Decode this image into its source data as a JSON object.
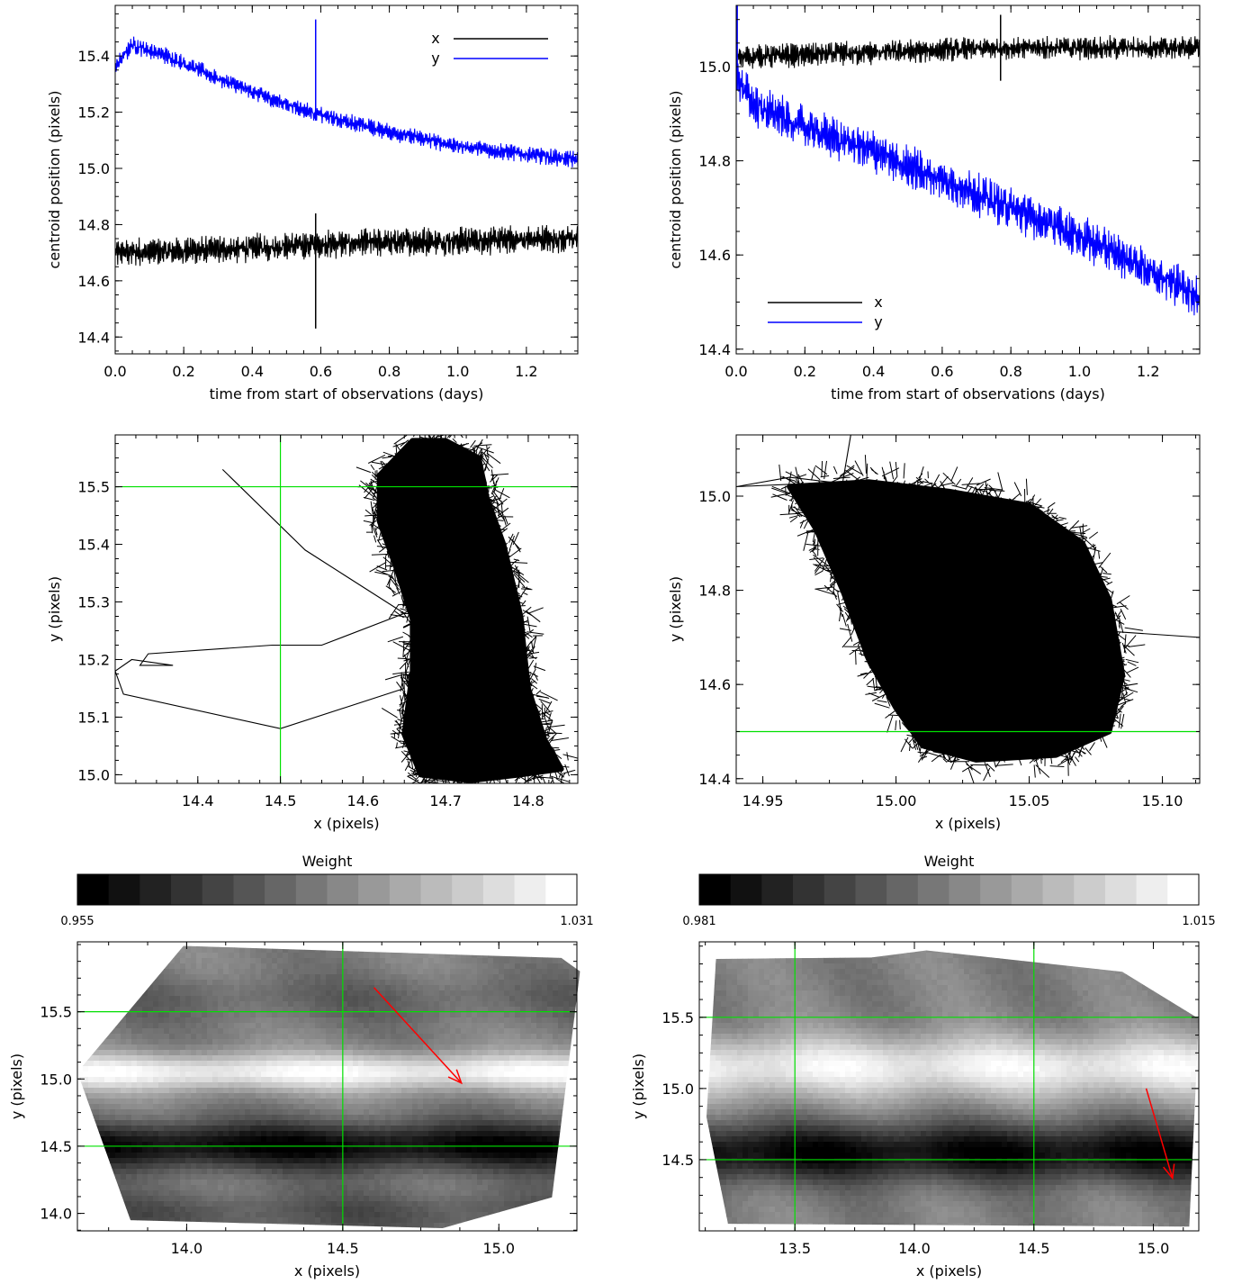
{
  "chart_data": [
    {
      "id": "A",
      "type": "line",
      "xlabel": "time from start of observations (days)",
      "ylabel": "centroid position (pixels)",
      "xlim": [
        0.0,
        1.35
      ],
      "ylim": [
        14.34,
        15.58
      ],
      "xticks": [
        0.0,
        0.2,
        0.4,
        0.6,
        0.8,
        1.0,
        1.2
      ],
      "xticklabels": [
        "0.0",
        "0.2",
        "0.4",
        "0.6",
        "0.8",
        "1.0",
        "1.2"
      ],
      "yticks": [
        14.4,
        14.6,
        14.8,
        15.0,
        15.2,
        15.4
      ],
      "yticklabels": [
        "14.4",
        "14.6",
        "14.8",
        "15.0",
        "15.2",
        "15.4"
      ],
      "legend_position": "top-right",
      "series": [
        {
          "name": "x",
          "color": "#000000",
          "trend": [
            [
              0.0,
              14.7
            ],
            [
              0.3,
              14.71
            ],
            [
              0.6,
              14.73
            ],
            [
              0.9,
              14.74
            ],
            [
              1.35,
              14.75
            ]
          ],
          "noise_halfwidth": 0.05,
          "spike": {
            "x": 0.585,
            "low": 14.43,
            "high": 14.84
          }
        },
        {
          "name": "y",
          "color": "#0000ff",
          "trend": [
            [
              0.0,
              15.36
            ],
            [
              0.05,
              15.44
            ],
            [
              0.15,
              15.4
            ],
            [
              0.3,
              15.32
            ],
            [
              0.45,
              15.25
            ],
            [
              0.6,
              15.19
            ],
            [
              0.8,
              15.13
            ],
            [
              1.0,
              15.08
            ],
            [
              1.2,
              15.05
            ],
            [
              1.35,
              15.03
            ]
          ],
          "noise_halfwidth": 0.03,
          "spike": {
            "x": 0.585,
            "low": 15.17,
            "high": 15.53
          }
        }
      ]
    },
    {
      "id": "B",
      "type": "line",
      "xlabel": "time from start of observations (days)",
      "ylabel": "centroid position (pixels)",
      "xlim": [
        0.0,
        1.35
      ],
      "ylim": [
        14.39,
        15.13
      ],
      "xticks": [
        0.0,
        0.2,
        0.4,
        0.6,
        0.8,
        1.0,
        1.2
      ],
      "xticklabels": [
        "0.0",
        "0.2",
        "0.4",
        "0.6",
        "0.8",
        "1.0",
        "1.2"
      ],
      "yticks": [
        14.4,
        14.6,
        14.8,
        15.0
      ],
      "yticklabels": [
        "14.4",
        "14.6",
        "14.8",
        "15.0"
      ],
      "legend_position": "bottom-left",
      "series": [
        {
          "name": "x",
          "color": "#000000",
          "trend": [
            [
              0.0,
              15.02
            ],
            [
              0.4,
              15.03
            ],
            [
              0.8,
              15.04
            ],
            [
              1.35,
              15.04
            ]
          ],
          "noise_halfwidth": 0.025,
          "spike": {
            "x": 0.77,
            "low": 14.97,
            "high": 15.11
          }
        },
        {
          "name": "y",
          "color": "#0000ff",
          "trend": [
            [
              0.0,
              14.98
            ],
            [
              0.05,
              14.92
            ],
            [
              0.2,
              14.87
            ],
            [
              0.4,
              14.82
            ],
            [
              0.6,
              14.76
            ],
            [
              0.8,
              14.7
            ],
            [
              1.0,
              14.64
            ],
            [
              1.2,
              14.57
            ],
            [
              1.35,
              14.51
            ]
          ],
          "noise_halfwidth": 0.045,
          "spike": {
            "x": 0.003,
            "low": 14.95,
            "high": 15.13
          }
        }
      ]
    },
    {
      "id": "C",
      "type": "line",
      "xlabel": "x (pixels)",
      "ylabel": "y (pixels)",
      "xlim": [
        14.3,
        14.86
      ],
      "ylim": [
        14.985,
        15.59
      ],
      "xticks": [
        14.4,
        14.5,
        14.6,
        14.7,
        14.8
      ],
      "xticklabels": [
        "14.4",
        "14.5",
        "14.6",
        "14.7",
        "14.8"
      ],
      "yticks": [
        15.0,
        15.1,
        15.2,
        15.3,
        15.4,
        15.5
      ],
      "yticklabels": [
        "15.0",
        "15.1",
        "15.2",
        "15.3",
        "15.4",
        "15.5"
      ],
      "reference_lines": {
        "x": 14.5,
        "y": 15.5,
        "color": "#00e000"
      },
      "trajectory_path": [
        [
          14.43,
          15.53
        ],
        [
          14.53,
          15.39
        ],
        [
          14.65,
          15.28
        ],
        [
          14.55,
          15.225
        ],
        [
          14.49,
          15.225
        ],
        [
          14.34,
          15.21
        ],
        [
          14.33,
          15.19
        ],
        [
          14.37,
          15.19
        ],
        [
          14.32,
          15.2
        ],
        [
          14.3,
          15.18
        ],
        [
          14.31,
          15.14
        ],
        [
          14.5,
          15.08
        ],
        [
          14.65,
          15.15
        ]
      ],
      "cloud_outline": [
        [
          14.62,
          15.52
        ],
        [
          14.66,
          15.58
        ],
        [
          14.7,
          15.58
        ],
        [
          14.74,
          15.55
        ],
        [
          14.75,
          15.48
        ],
        [
          14.77,
          15.4
        ],
        [
          14.79,
          15.28
        ],
        [
          14.8,
          15.15
        ],
        [
          14.82,
          15.06
        ],
        [
          14.84,
          15.01
        ],
        [
          14.79,
          15.0
        ],
        [
          14.73,
          14.99
        ],
        [
          14.67,
          15.0
        ],
        [
          14.65,
          15.07
        ],
        [
          14.66,
          15.18
        ],
        [
          14.66,
          15.27
        ],
        [
          14.64,
          15.36
        ],
        [
          14.62,
          15.44
        ]
      ]
    },
    {
      "id": "D",
      "type": "line",
      "xlabel": "x (pixels)",
      "ylabel": "y (pixels)",
      "xlim": [
        14.94,
        15.114
      ],
      "ylim": [
        14.39,
        15.13
      ],
      "xticks": [
        14.95,
        15.0,
        15.05,
        15.1
      ],
      "xticklabels": [
        "14.95",
        "15.00",
        "15.05",
        "15.10"
      ],
      "yticks": [
        14.4,
        14.6,
        14.8,
        15.0
      ],
      "yticklabels": [
        "14.4",
        "14.6",
        "14.8",
        "15.0"
      ],
      "reference_lines": {
        "y": 14.5,
        "color": "#00e000"
      },
      "trajectory_path": [
        [
          14.983,
          15.13
        ],
        [
          14.98,
          15.03
        ],
        [
          14.94,
          15.02
        ],
        [
          14.96,
          15.04
        ],
        [
          14.99,
          15.02
        ]
      ],
      "cloud_outline": [
        [
          14.96,
          15.02
        ],
        [
          14.99,
          15.03
        ],
        [
          15.02,
          15.01
        ],
        [
          15.05,
          14.98
        ],
        [
          15.07,
          14.9
        ],
        [
          15.08,
          14.78
        ],
        [
          15.085,
          14.62
        ],
        [
          15.08,
          14.5
        ],
        [
          15.06,
          14.45
        ],
        [
          15.03,
          14.44
        ],
        [
          15.01,
          14.47
        ],
        [
          15.0,
          14.55
        ],
        [
          14.99,
          14.65
        ],
        [
          14.98,
          14.8
        ],
        [
          14.97,
          14.93
        ]
      ],
      "outliers": [
        [
          15.114,
          14.7
        ],
        [
          14.985,
          14.75
        ]
      ]
    },
    {
      "id": "E",
      "type": "heatmap",
      "colorbar_title": "Weight",
      "colorbar_min_label": "0.955",
      "colorbar_max_label": "1.031",
      "colorbar_levels": 16,
      "xlabel": "x (pixels)",
      "ylabel": "y (pixels)",
      "xlim": [
        13.65,
        15.25
      ],
      "ylim": [
        13.87,
        16.02
      ],
      "xticks": [
        14.0,
        14.5,
        15.0
      ],
      "xticklabels": [
        "14.0",
        "14.5",
        "15.0"
      ],
      "yticks": [
        14.0,
        14.5,
        15.0,
        15.5
      ],
      "yticklabels": [
        "14.0",
        "14.5",
        "15.0",
        "15.5"
      ],
      "reference_lines": {
        "x": [
          14.5
        ],
        "y": [
          14.5,
          15.5
        ],
        "color": "#00e000"
      },
      "hull": [
        [
          13.65,
          15.05
        ],
        [
          13.99,
          15.99
        ],
        [
          15.2,
          15.9
        ],
        [
          15.26,
          15.8
        ],
        [
          15.17,
          14.12
        ],
        [
          14.82,
          13.89
        ],
        [
          13.82,
          13.95
        ]
      ],
      "bands": [
        {
          "y": 15.05,
          "value": 1.028,
          "width": 0.14
        },
        {
          "y": 14.5,
          "value": 0.957,
          "width": 0.18
        },
        {
          "y": 15.6,
          "value": 0.985,
          "width": 0.18
        },
        {
          "y": 14.0,
          "value": 0.98,
          "width": 0.18
        }
      ],
      "arrow": {
        "from": [
          14.6,
          15.68
        ],
        "to": [
          14.88,
          14.97
        ],
        "color": "#ff0000"
      }
    },
    {
      "id": "F",
      "type": "heatmap",
      "colorbar_title": "Weight",
      "colorbar_min_label": "0.981",
      "colorbar_max_label": "1.015",
      "colorbar_levels": 16,
      "xlabel": "x (pixels)",
      "ylabel": "y (pixels)",
      "xlim": [
        13.1,
        15.19
      ],
      "ylim": [
        14.0,
        16.03
      ],
      "xticks": [
        13.5,
        14.0,
        14.5,
        15.0
      ],
      "xticklabels": [
        "13.5",
        "14.0",
        "14.5",
        "15.0"
      ],
      "yticks": [
        14.5,
        15.0,
        15.5
      ],
      "yticklabels": [
        "14.5",
        "15.0",
        "15.5"
      ],
      "reference_lines": {
        "x": [
          13.5,
          14.5
        ],
        "y": [
          14.5,
          15.5
        ],
        "color": "#00e000"
      },
      "hull": [
        [
          13.17,
          15.91
        ],
        [
          13.82,
          15.92
        ],
        [
          14.05,
          15.97
        ],
        [
          14.87,
          15.82
        ],
        [
          15.19,
          15.49
        ],
        [
          15.15,
          14.03
        ],
        [
          13.22,
          14.05
        ],
        [
          13.13,
          14.8
        ]
      ],
      "bands": [
        {
          "y": 14.55,
          "value": 0.982,
          "width": 0.2
        },
        {
          "y": 15.15,
          "value": 1.013,
          "width": 0.22
        }
      ],
      "arrow": {
        "from": [
          14.97,
          15.0
        ],
        "to": [
          15.08,
          14.37
        ],
        "color": "#ff0000"
      }
    }
  ]
}
